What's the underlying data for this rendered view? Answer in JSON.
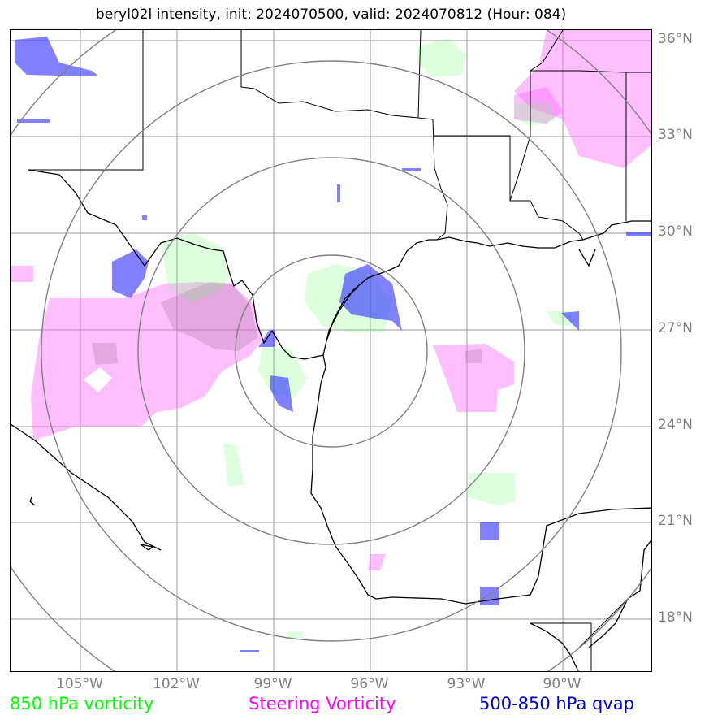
{
  "title": "beryl02l intensity, init: 2024070500, valid: 2024070812 (Hour: 084)",
  "lat_labels": [
    "36°N",
    "33°N",
    "30°N",
    "27°N",
    "24°N",
    "21°N",
    "18°N"
  ],
  "lon_labels": [
    "105°W",
    "102°W",
    "99°W",
    "96°W",
    "93°W",
    "90°W"
  ],
  "legend": {
    "vorticity_850": "850 hPa vorticity",
    "steering_vorticity": "Steering Vorticity",
    "qvap": "500-850 hPa qvap"
  },
  "colors": {
    "vorticity_850": "#00ff00",
    "steering_vorticity": "#ff00ff",
    "qvap": "#0000cc",
    "grid": "#999999",
    "rings": "#808080",
    "coast": "#000000",
    "axis_labels": "#7f7f7f"
  }
}
